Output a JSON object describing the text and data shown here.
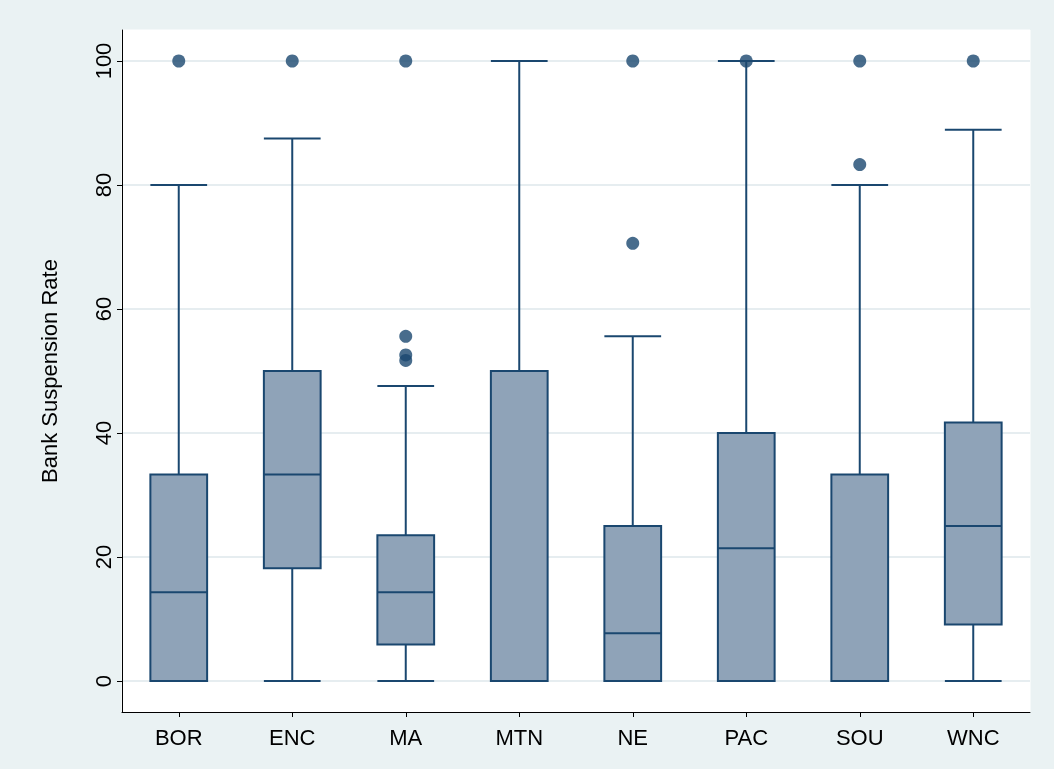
{
  "chart_data": {
    "type": "box",
    "ylabel": "Bank Suspension Rate",
    "categories": [
      "BOR",
      "ENC",
      "MA",
      "MTN",
      "NE",
      "PAC",
      "SOU",
      "WNC"
    ],
    "color": "#8fa3b8",
    "boxes": [
      {
        "low": 0,
        "q1": 0,
        "median": 14.3,
        "q3": 33.3,
        "high": 80,
        "outliers": [
          100
        ]
      },
      {
        "low": 0,
        "q1": 18.2,
        "median": 33.3,
        "q3": 50,
        "high": 87.5,
        "outliers": [
          100
        ]
      },
      {
        "low": 0,
        "q1": 5.9,
        "median": 14.3,
        "q3": 23.5,
        "high": 47.6,
        "outliers": [
          51.7,
          52.6,
          55.6,
          100
        ]
      },
      {
        "low": 0,
        "q1": 0,
        "median": 0,
        "q3": 50,
        "high": 100
      },
      {
        "low": 0,
        "q1": 0,
        "median": 7.7,
        "q3": 25,
        "high": 55.6,
        "outliers": [
          70.6,
          100
        ]
      },
      {
        "low": 0,
        "q1": 0,
        "median": 21.4,
        "q3": 40,
        "high": 100,
        "outliers": [
          100
        ]
      },
      {
        "low": 0,
        "q1": 0,
        "median": 0,
        "q3": 33.3,
        "high": 80,
        "outliers": [
          83.3,
          100
        ]
      },
      {
        "low": 0,
        "q1": 9.1,
        "median": 25,
        "q3": 41.7,
        "high": 88.9,
        "outliers": [
          100
        ]
      }
    ],
    "ylim": [
      -5,
      105
    ],
    "yticks": [
      0,
      20,
      40,
      60,
      80,
      100
    ],
    "grid": "y",
    "marker": "circle"
  }
}
